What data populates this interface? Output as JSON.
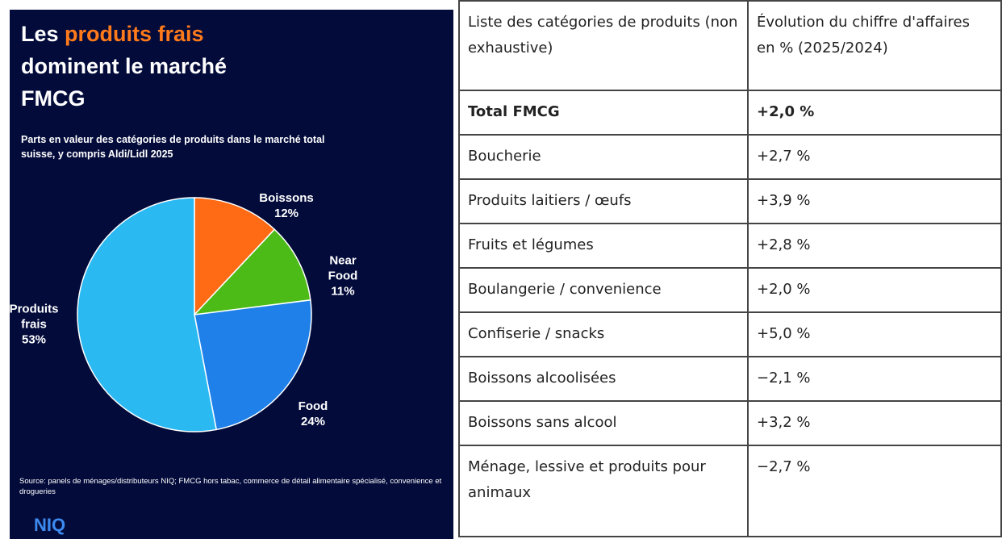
{
  "chart_data": {
    "type": "pie",
    "title": "Les",
    "title_highlight": "produits frais",
    "title_rest": "dominent le marché FMCG",
    "subtitle": "Parts en valeur des catégories de produits dans le marché total suisse, y compris Aldi/Lidl 2025",
    "categories": [
      "Boissons",
      "Near Food",
      "Food",
      "Produits frais"
    ],
    "values": [
      12,
      11,
      24,
      53
    ],
    "value_labels": [
      "12%",
      "11%",
      "24%",
      "53%"
    ],
    "colors": [
      "#ff6b14",
      "#4cbb17",
      "#1f80ea",
      "#2bb9f2"
    ],
    "source": "Source: panels de ménages/distributeurs NIQ; FMCG hors tabac, commerce de détail alimentaire spécialisé, convenience et drogueries",
    "brand": "NIQ"
  },
  "table": {
    "header": [
      "Liste des catégories de produits (non exhaustive)",
      "Évolution du chiffre d'affaires en % (2025/2024)"
    ],
    "rows": [
      [
        "Total FMCG",
        "+2,0 %"
      ],
      [
        "Boucherie",
        "+2,7 %"
      ],
      [
        "Produits laitiers / œufs",
        "+3,9 %"
      ],
      [
        "Fruits et légumes",
        "+2,8 %"
      ],
      [
        "Boulangerie / convenience",
        "+2,0 %"
      ],
      [
        "Confiserie / snacks",
        "+5,0 %"
      ],
      [
        "Boissons alcoolisées",
        "−2,1 %"
      ],
      [
        "Boissons sans alcool",
        "+3,2 %"
      ],
      [
        "Ménage, lessive et produits pour animaux",
        "−2,7 %"
      ]
    ]
  }
}
